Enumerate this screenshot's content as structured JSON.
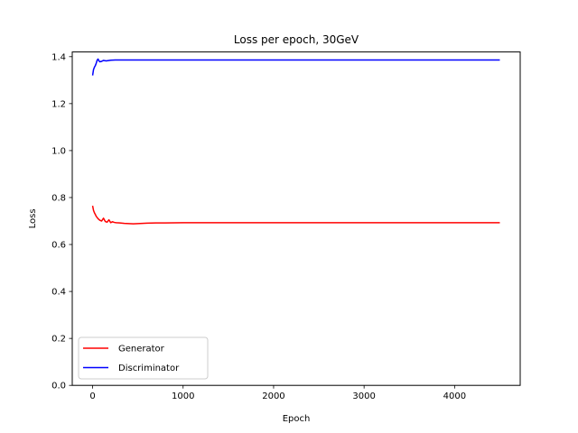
{
  "chart_data": {
    "type": "line",
    "title": "Loss per epoch, 30GeV",
    "xlabel": "Epoch",
    "ylabel": "Loss",
    "xlim": [
      -225,
      4725
    ],
    "ylim": [
      0.0,
      1.42
    ],
    "xticks": [
      0,
      1000,
      2000,
      3000,
      4000
    ],
    "yticks": [
      0.0,
      0.2,
      0.4,
      0.6,
      0.8,
      1.0,
      1.2,
      1.4
    ],
    "xtick_labels": [
      "0",
      "1000",
      "2000",
      "3000",
      "4000"
    ],
    "ytick_labels": [
      "0.0",
      "0.2",
      "0.4",
      "0.6",
      "0.8",
      "1.0",
      "1.2",
      "1.4"
    ],
    "grid": false,
    "legend_position": "lower-left",
    "series": [
      {
        "name": "Generator",
        "color": "#ff0000",
        "x": [
          0,
          10,
          20,
          30,
          40,
          60,
          80,
          100,
          120,
          140,
          160,
          180,
          200,
          220,
          240,
          260,
          300,
          350,
          400,
          450,
          500,
          600,
          700,
          800,
          1000,
          1500,
          2000,
          2500,
          3000,
          3500,
          4000,
          4500
        ],
        "y": [
          0.765,
          0.745,
          0.735,
          0.728,
          0.72,
          0.71,
          0.703,
          0.7,
          0.712,
          0.698,
          0.695,
          0.705,
          0.693,
          0.697,
          0.694,
          0.693,
          0.692,
          0.69,
          0.689,
          0.688,
          0.689,
          0.691,
          0.692,
          0.692,
          0.693,
          0.693,
          0.693,
          0.693,
          0.693,
          0.693,
          0.693,
          0.693
        ]
      },
      {
        "name": "Discriminator",
        "color": "#0000ff",
        "x": [
          0,
          10,
          20,
          30,
          40,
          50,
          60,
          70,
          80,
          100,
          120,
          150,
          200,
          250,
          300,
          400,
          500,
          700,
          1000,
          1500,
          2000,
          2500,
          3000,
          3500,
          4000,
          4500
        ],
        "y": [
          1.32,
          1.345,
          1.355,
          1.362,
          1.372,
          1.385,
          1.39,
          1.382,
          1.378,
          1.38,
          1.384,
          1.382,
          1.385,
          1.386,
          1.386,
          1.386,
          1.386,
          1.386,
          1.386,
          1.386,
          1.386,
          1.386,
          1.386,
          1.386,
          1.386,
          1.386
        ]
      }
    ]
  }
}
